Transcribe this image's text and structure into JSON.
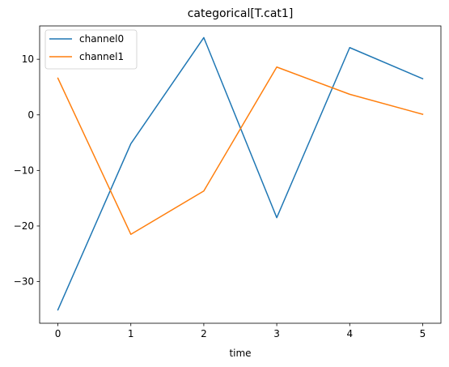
{
  "chart_data": {
    "type": "line",
    "title": "categorical[T.cat1]",
    "xlabel": "time",
    "ylabel": "",
    "x": [
      0,
      1,
      2,
      3,
      4,
      5
    ],
    "xlim": [
      -0.25,
      5.25
    ],
    "ylim": [
      -37.5,
      16.0
    ],
    "xticks": [
      0,
      1,
      2,
      3,
      4,
      5
    ],
    "yticks": [
      10,
      0,
      -10,
      -20,
      -30
    ],
    "ytick_labels": [
      "10",
      "0",
      "−10",
      "−20",
      "−30"
    ],
    "grid": false,
    "legend_position": "top-left",
    "series": [
      {
        "name": "channel0",
        "color": "#1f77b4",
        "values": [
          -35.1,
          -5.2,
          13.9,
          -18.5,
          12.1,
          6.5
        ]
      },
      {
        "name": "channel1",
        "color": "#ff7f0e",
        "values": [
          6.6,
          -21.5,
          -13.7,
          8.6,
          3.7,
          0.1
        ]
      }
    ]
  }
}
